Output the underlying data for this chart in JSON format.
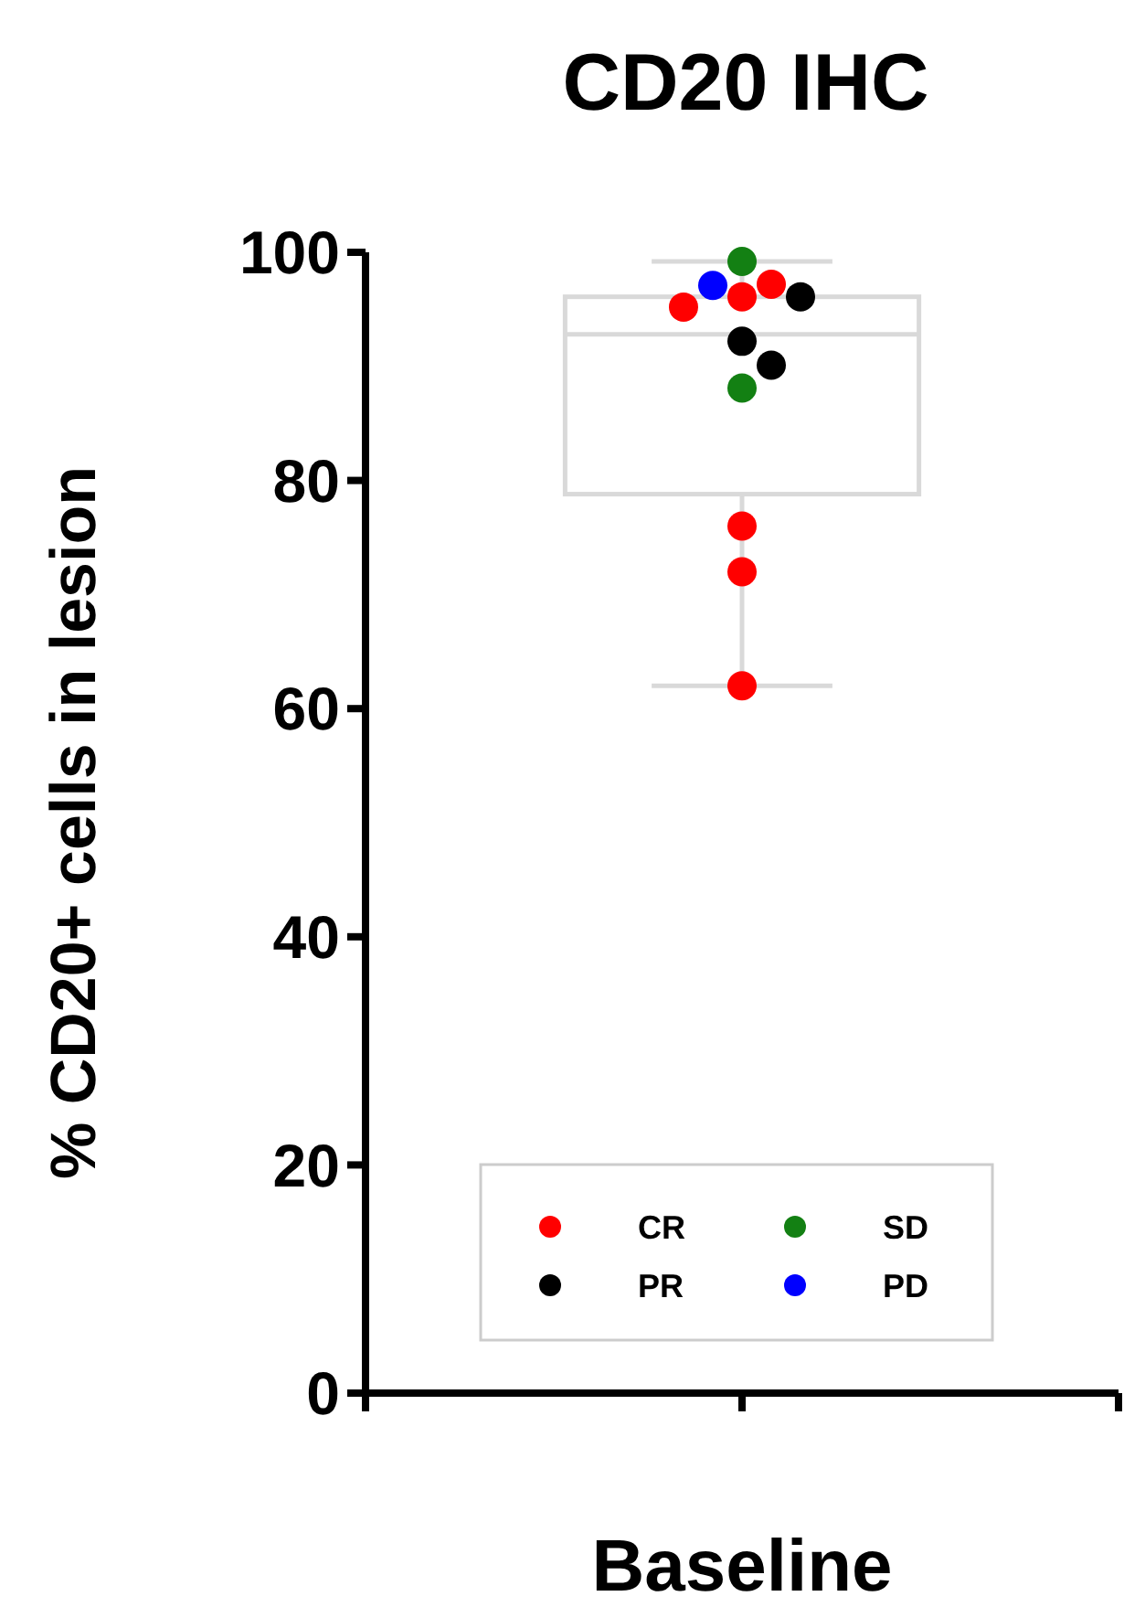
{
  "chart_data": {
    "type": "box",
    "title": "CD20 IHC",
    "ylabel": "% CD20+ cells in lesion",
    "categories": [
      "Baseline"
    ],
    "ylim": [
      0,
      100
    ],
    "yticks": [
      0,
      20,
      40,
      60,
      80,
      100
    ],
    "boxes": [
      {
        "low": 62,
        "q1": 78.8,
        "median": 92.8,
        "q3": 96.1,
        "high": 99.2
      }
    ],
    "color": "#d9d9d9",
    "legend": "bottom",
    "grid": false,
    "series": [
      {
        "name": "CR",
        "type": "scatter",
        "color": "#ff0000",
        "x": [
          "Baseline",
          "Baseline",
          "Baseline",
          "Baseline",
          "Baseline",
          "Baseline"
        ],
        "values": [
          97.2,
          95.2,
          96.1,
          76,
          72,
          62
        ]
      },
      {
        "name": "PR",
        "type": "scatter",
        "color": "#000000",
        "x": [
          "Baseline",
          "Baseline",
          "Baseline"
        ],
        "values": [
          96.1,
          92.2,
          90.1
        ]
      },
      {
        "name": "SD",
        "type": "scatter",
        "color": "#138013",
        "x": [
          "Baseline",
          "Baseline"
        ],
        "values": [
          99.2,
          88.1
        ]
      },
      {
        "name": "PD",
        "type": "scatter",
        "color": "#0000ff",
        "x": [
          "Baseline"
        ],
        "values": [
          97.1
        ]
      }
    ]
  }
}
